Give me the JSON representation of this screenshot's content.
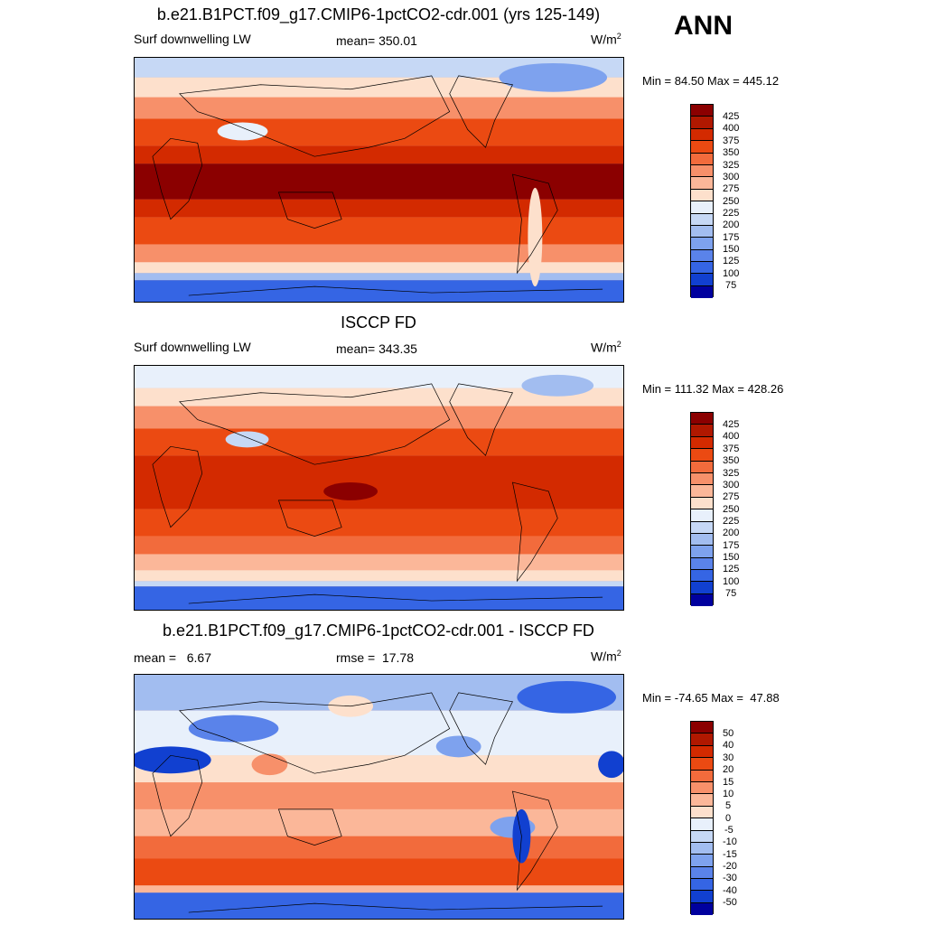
{
  "season": "ANN",
  "panels": [
    {
      "title": "b.e21.B1PCT.f09_g17.CMIP6-1pctCO2-cdr.001 (yrs 125-149)",
      "left_label": "Surf downwelling LW",
      "center_label": "mean= 350.01",
      "unit_base": "W/m",
      "unit_exp": "2",
      "minmax": "Min =  84.50 Max = 445.12",
      "colorbar": [
        "425",
        "400",
        "375",
        "350",
        "325",
        "300",
        "275",
        "250",
        "225",
        "200",
        "175",
        "150",
        "125",
        "100",
        "75"
      ]
    },
    {
      "title": "ISCCP FD",
      "left_label": "Surf downwelling LW",
      "center_label": "mean= 343.35",
      "unit_base": "W/m",
      "unit_exp": "2",
      "minmax": "Min = 111.32 Max = 428.26",
      "colorbar": [
        "425",
        "400",
        "375",
        "350",
        "325",
        "300",
        "275",
        "250",
        "225",
        "200",
        "175",
        "150",
        "125",
        "100",
        "75"
      ]
    },
    {
      "title": "b.e21.B1PCT.f09_g17.CMIP6-1pctCO2-cdr.001 - ISCCP FD",
      "left_label": "mean =   6.67",
      "center_label": "rmse =  17.78",
      "unit_base": "W/m",
      "unit_exp": "2",
      "minmax": "Min = -74.65 Max =  47.88",
      "colorbar": [
        "50",
        "40",
        "30",
        "20",
        "15",
        "10",
        "5",
        "0",
        "-5",
        "-10",
        "-15",
        "-20",
        "-30",
        "-40",
        "-50"
      ]
    }
  ],
  "colors": {
    "palette16": [
      "#8b0000",
      "#b01800",
      "#d32a00",
      "#eb4a12",
      "#f26b3c",
      "#f7906a",
      "#fbb799",
      "#fde0cc",
      "#e8f0fb",
      "#c6d8f5",
      "#a2bdf0",
      "#7ea2ee",
      "#5a83ea",
      "#3565e4",
      "#1140d0",
      "#00009e"
    ]
  }
}
